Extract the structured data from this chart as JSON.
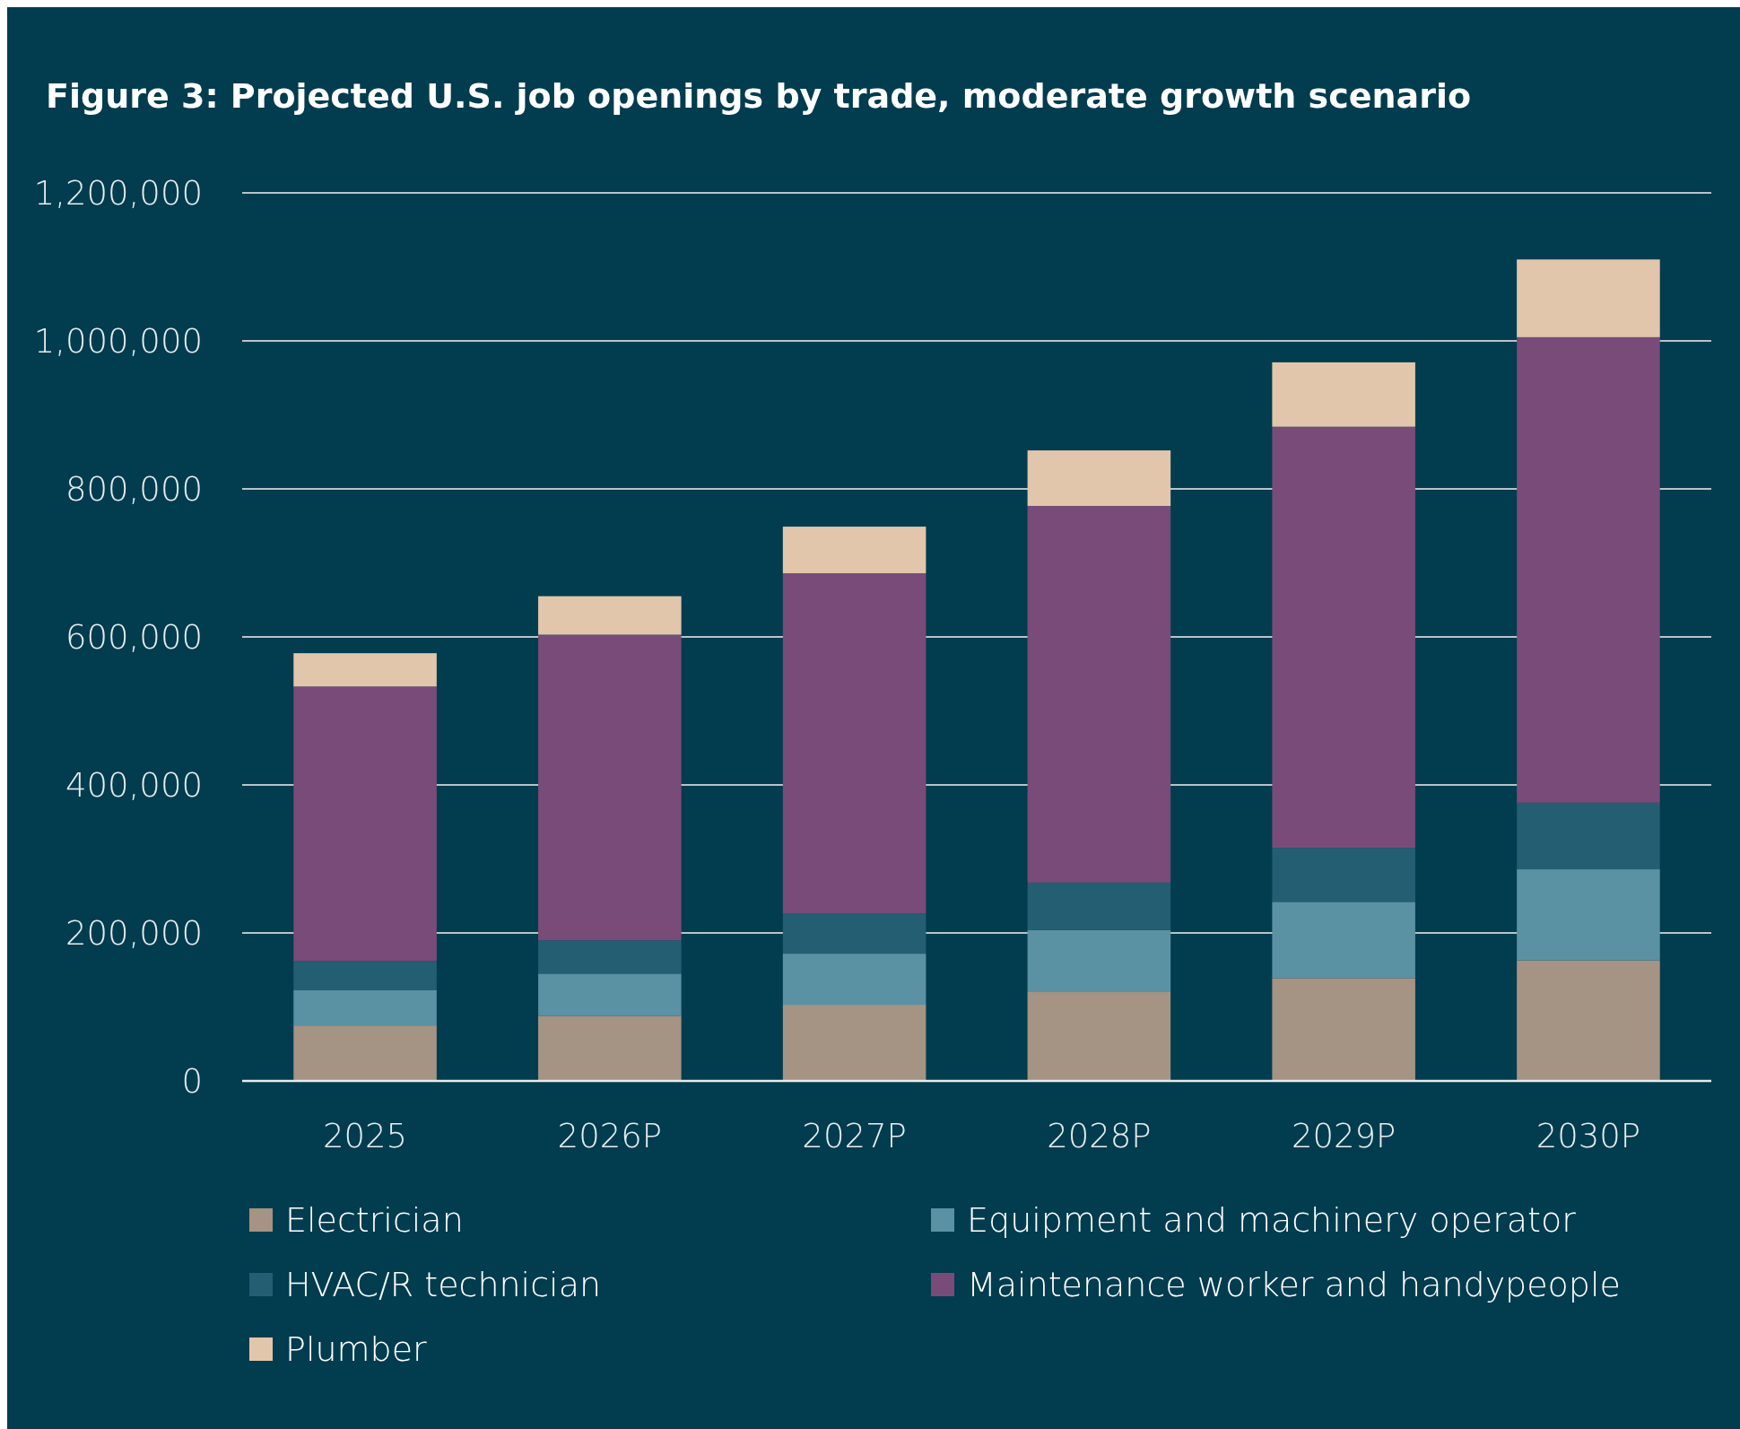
{
  "chart_data": {
    "type": "bar",
    "title": "Figure 3: Projected U.S. job openings by trade, moderate growth scenario",
    "categories": [
      "2025",
      "2026P",
      "2027P",
      "2028P",
      "2029P",
      "2030P"
    ],
    "stacked": true,
    "ylim": [
      0,
      1200000
    ],
    "yticks": [
      {
        "value": 0,
        "label": "0"
      },
      {
        "value": 200000,
        "label": "200,000"
      },
      {
        "value": 400000,
        "label": "400,000"
      },
      {
        "value": 600000,
        "label": "600,000"
      },
      {
        "value": 800000,
        "label": "800,000"
      },
      {
        "value": 1000000,
        "label": "1,000,000"
      },
      {
        "value": 1200000,
        "label": "1,200,000"
      }
    ],
    "grid": "y",
    "legend": "bottom",
    "series": [
      {
        "name": "Electrician",
        "color": "#a59383",
        "values": [
          75000,
          88000,
          103000,
          120000,
          139000,
          163000
        ]
      },
      {
        "name": "Equipment and machinery operator",
        "color": "#5a92a3",
        "values": [
          48000,
          57000,
          69000,
          84000,
          103000,
          123000
        ]
      },
      {
        "name": "HVAC/R technician",
        "color": "#245e73",
        "values": [
          39000,
          45000,
          54000,
          64000,
          73000,
          90000
        ]
      },
      {
        "name": "Maintenance worker and handypeople",
        "color": "#794b78",
        "values": [
          371000,
          413000,
          460000,
          509000,
          569000,
          629000
        ]
      },
      {
        "name": "Plumber",
        "color": "#e1c6ab",
        "values": [
          45000,
          52000,
          63000,
          75000,
          87000,
          105000
        ]
      }
    ]
  }
}
